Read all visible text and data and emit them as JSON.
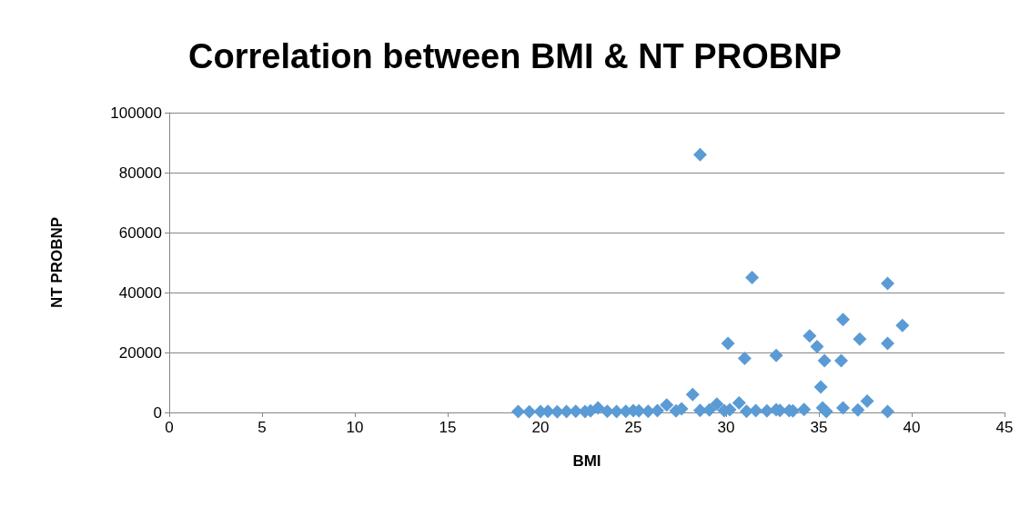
{
  "chart_data": {
    "type": "scatter",
    "title": "Correlation between BMI & NT PROBNP",
    "xlabel": "BMI",
    "ylabel": "NT PROBNP",
    "x": [
      18.8,
      19.4,
      20.0,
      20.4,
      20.9,
      21.4,
      21.9,
      22.4,
      22.7,
      23.1,
      23.6,
      24.1,
      24.6,
      25.0,
      25.3,
      25.8,
      26.3,
      26.8,
      27.3,
      27.6,
      28.2,
      28.6,
      29.1,
      29.5,
      29.9,
      30.2,
      30.7,
      31.1,
      31.6,
      32.2,
      32.7,
      32.9,
      33.4,
      33.6,
      34.2,
      35.1,
      35.2,
      35.4,
      36.3,
      37.1,
      37.6,
      38.7,
      28.6,
      31.4,
      38.7,
      30.1,
      31.0,
      32.7,
      34.5,
      34.9,
      35.3,
      36.3,
      36.2,
      37.2,
      38.7,
      39.5
    ],
    "values": [
      300,
      200,
      300,
      400,
      200,
      300,
      400,
      300,
      500,
      1500,
      400,
      300,
      400,
      600,
      500,
      400,
      600,
      2500,
      500,
      1200,
      6000,
      700,
      800,
      2800,
      600,
      900,
      3200,
      400,
      600,
      500,
      900,
      700,
      600,
      500,
      1000,
      8500,
      1500,
      300,
      1500,
      800,
      3800,
      300,
      86000,
      45000,
      43000,
      23000,
      18000,
      19000,
      25500,
      22000,
      17300,
      31000,
      17300,
      24500,
      23000,
      29000
    ],
    "color": "#5b9bd5",
    "marker": "diamond",
    "xlim": [
      0,
      45
    ],
    "xticks": [
      0,
      5,
      10,
      15,
      20,
      25,
      30,
      35,
      40,
      45
    ],
    "ylim": [
      0,
      100000
    ],
    "yticks": [
      0,
      20000,
      40000,
      60000,
      80000,
      100000
    ],
    "grid": "y"
  }
}
